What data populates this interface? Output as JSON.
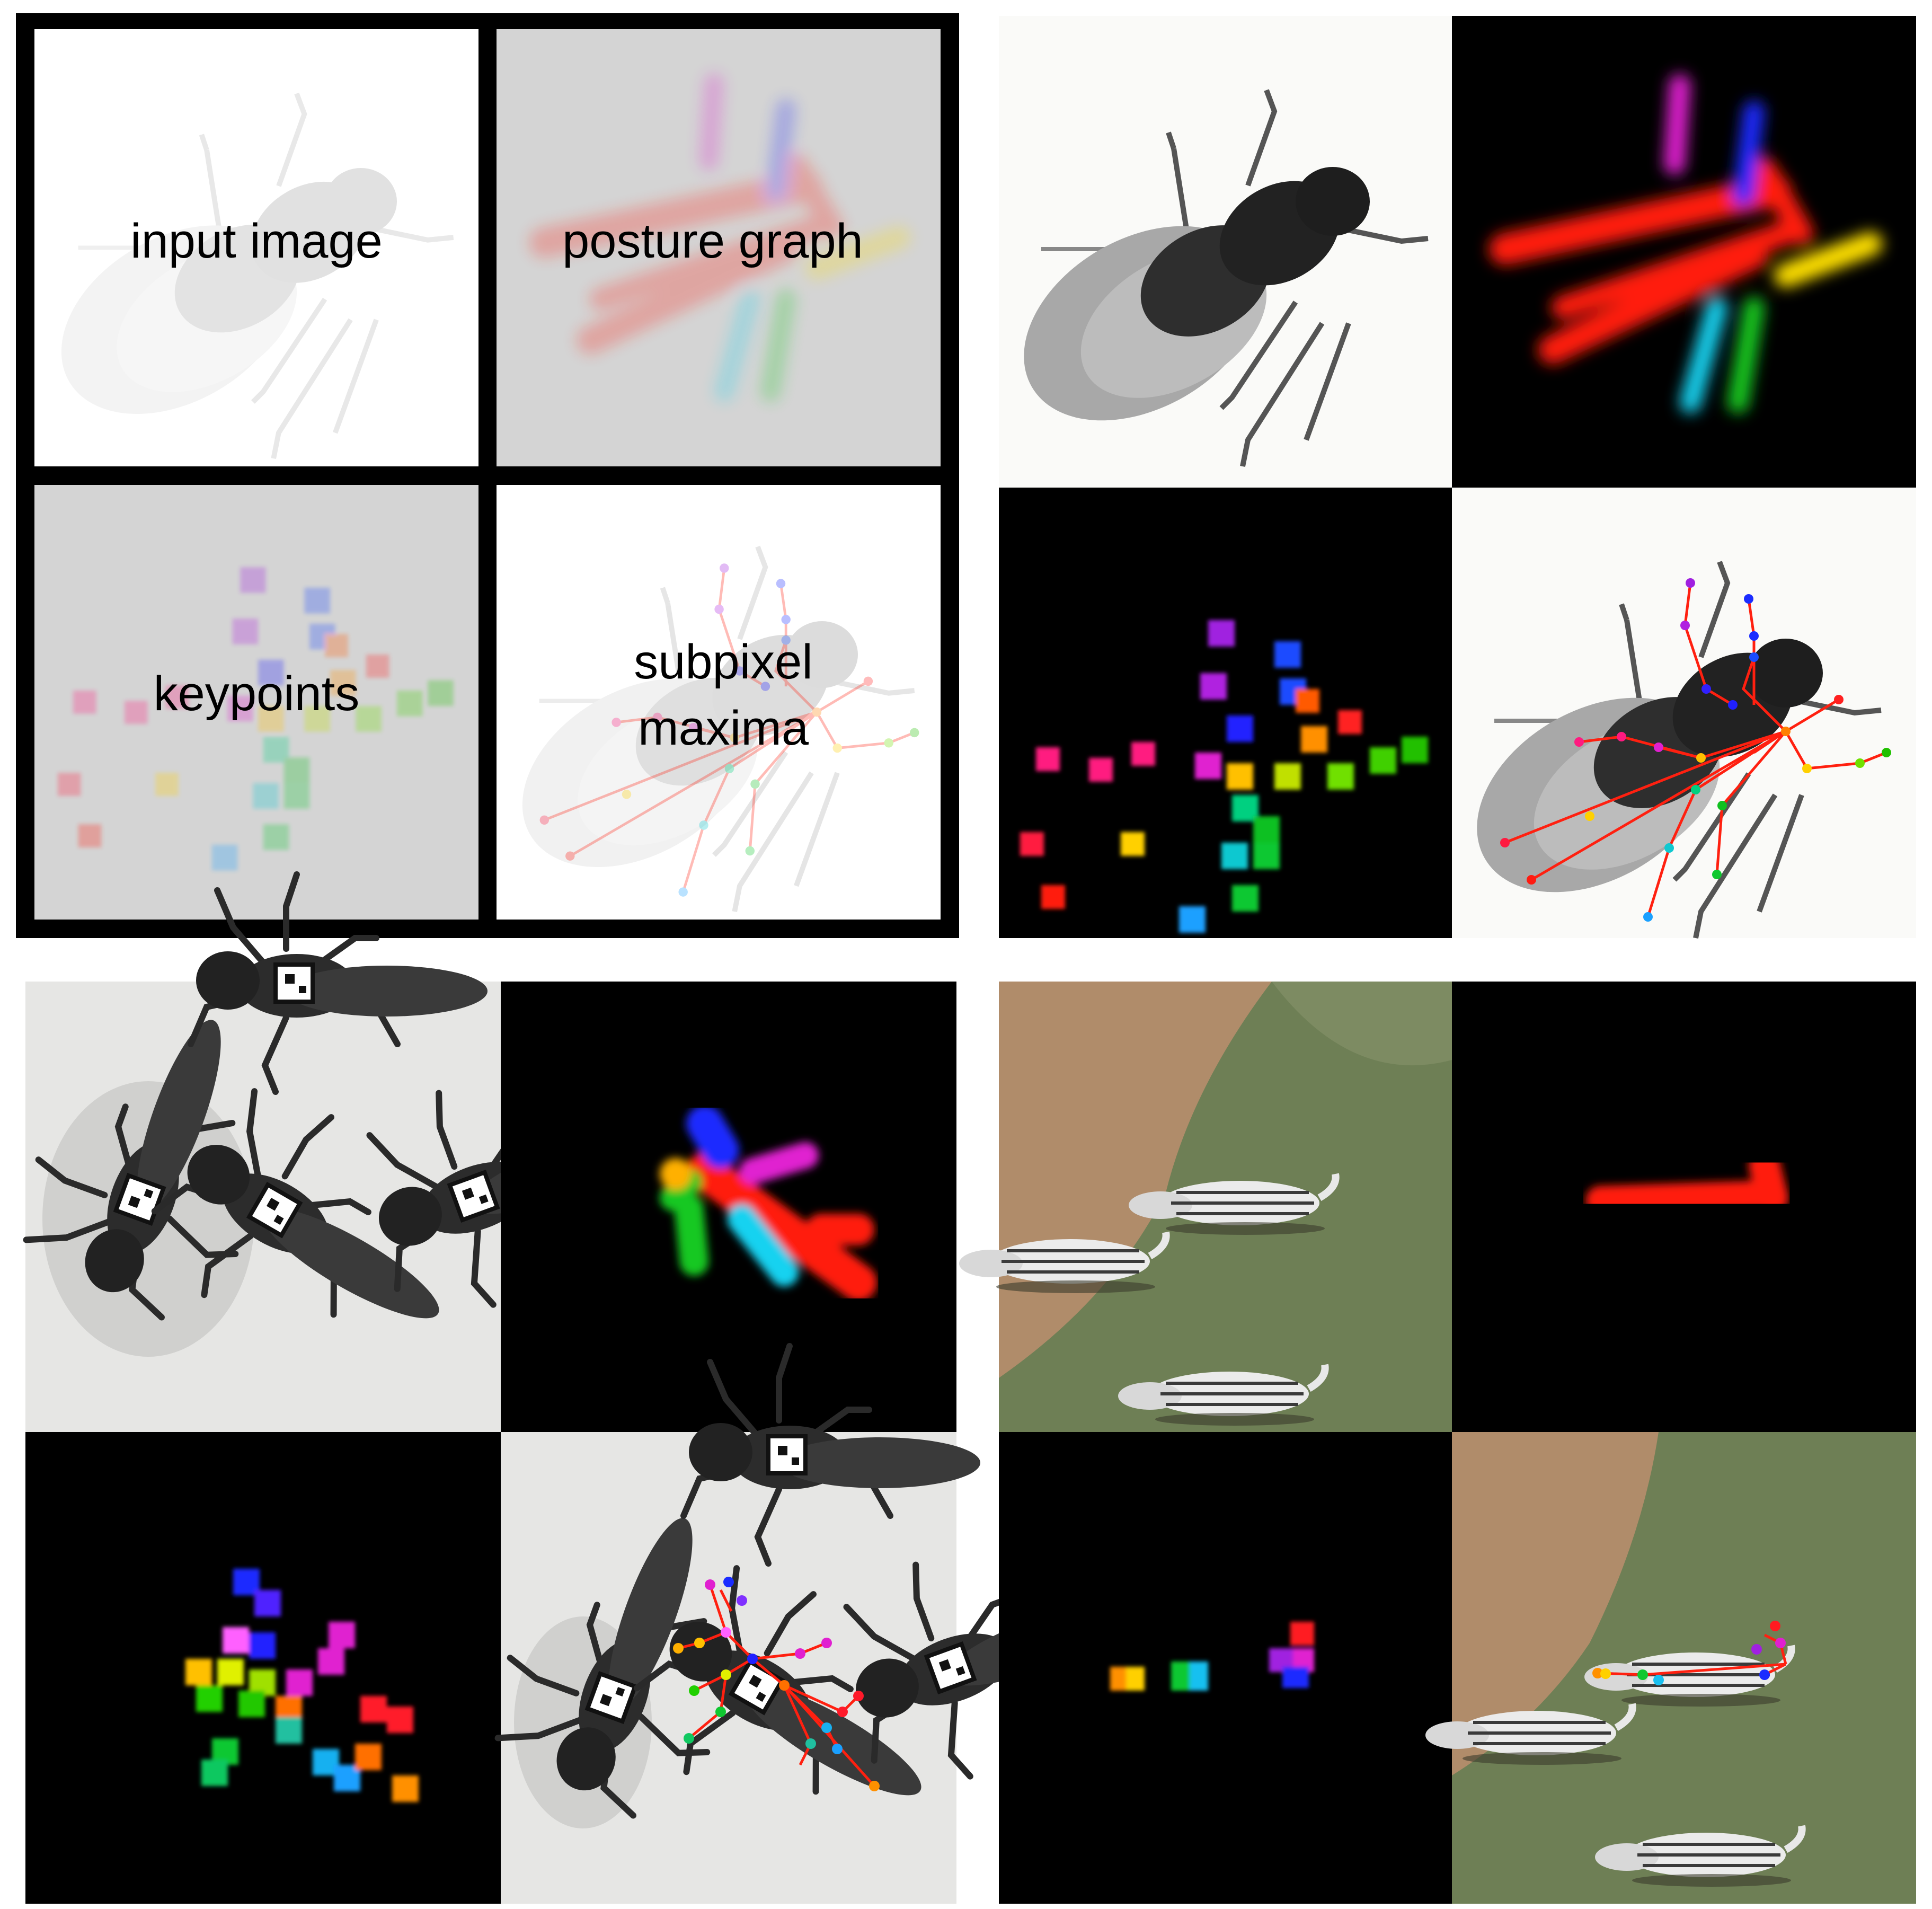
{
  "legend": {
    "input_label": "input image",
    "posture_label": "posture graph",
    "keypoints_label": "keypoints",
    "maxima_line1": "subpixel",
    "maxima_line2": "maxima"
  },
  "colors": {
    "frame": "#000000",
    "legend_gray": "#d4d4d4",
    "limb_red": "#ff1a0a",
    "yellow": "#ffe000",
    "cyan": "#19d2f0",
    "green": "#18c820",
    "blue": "#1a2cff",
    "magenta": "#e020d0",
    "grass": "#6e7f55",
    "soil": "#b08c6a",
    "paper": "#e6e6e4"
  },
  "icons": {
    "fly": "fly-silhouette-icon",
    "locust": "locust-silhouette-icon",
    "zebra": "zebra-silhouette-icon"
  }
}
